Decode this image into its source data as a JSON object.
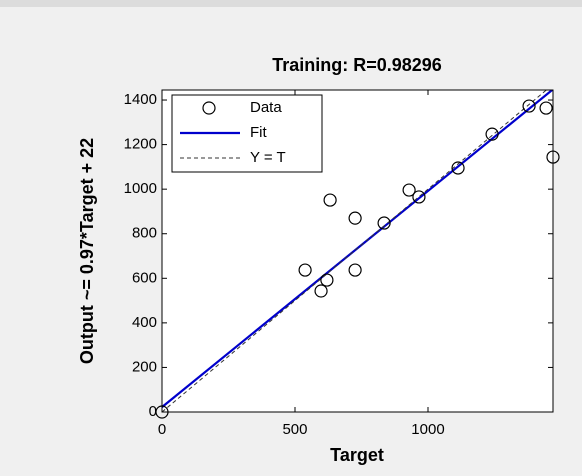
{
  "chart_data": {
    "type": "scatter",
    "title": "Training: R=0.98296",
    "xlabel": "Target",
    "ylabel": "Output ~= 0.97*Target + 22",
    "xlim": [
      0,
      1470
    ],
    "ylim": [
      0,
      1445
    ],
    "xticks": [
      0,
      500,
      1000
    ],
    "yticks": [
      0,
      200,
      400,
      600,
      800,
      1000,
      1200,
      1400
    ],
    "grid": false,
    "legend": "upper left",
    "series": [
      {
        "name": "Data",
        "color": "#000000",
        "marker": "circle",
        "x": [
          0,
          538,
          598,
          620,
          632,
          726,
          726,
          835,
          929,
          966,
          1113,
          1241,
          1380,
          1444,
          1470
        ],
        "values": [
          0,
          637,
          543,
          592,
          951,
          870,
          637,
          848,
          996,
          965,
          1095,
          1247,
          1373,
          1364,
          1144
        ]
      },
      {
        "name": "Fit",
        "color": "#0000cc",
        "line": "solid",
        "x": [
          0,
          1470
        ],
        "values": [
          22,
          1448
        ]
      },
      {
        "name": "Y = T",
        "color": "#333333",
        "line": "dashed",
        "x": [
          0,
          1470
        ],
        "values": [
          0,
          1470
        ]
      }
    ]
  }
}
